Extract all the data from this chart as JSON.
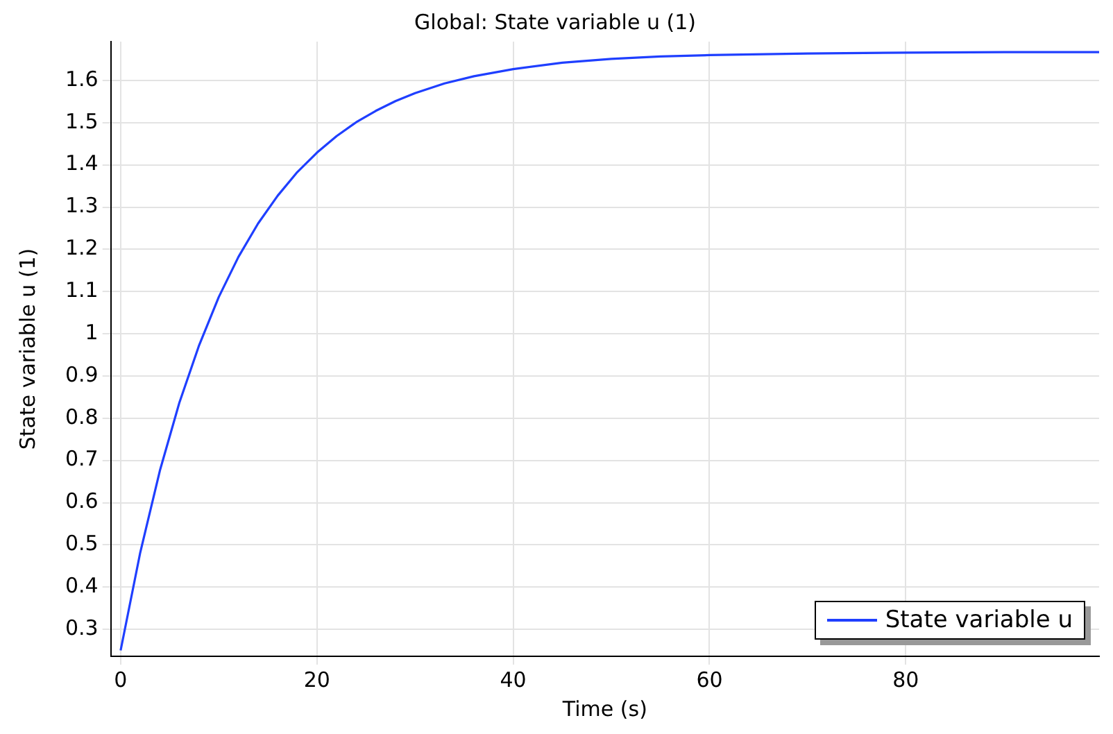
{
  "chart_data": {
    "type": "line",
    "title": "Global: State variable u (1)",
    "xlabel": "Time (s)",
    "ylabel": "State variable u (1)",
    "x": [
      0,
      2,
      4,
      6,
      8,
      10,
      12,
      14,
      16,
      18,
      20,
      22,
      24,
      26,
      28,
      30,
      33,
      36,
      40,
      45,
      50,
      55,
      60,
      70,
      80,
      90,
      99.7
    ],
    "series": [
      {
        "name": "State variable u",
        "color": "#1f3fff",
        "values": [
          0.25,
          0.482,
          0.676,
          0.838,
          0.973,
          1.087,
          1.182,
          1.261,
          1.327,
          1.383,
          1.429,
          1.468,
          1.501,
          1.528,
          1.551,
          1.57,
          1.593,
          1.61,
          1.627,
          1.642,
          1.651,
          1.657,
          1.66,
          1.664,
          1.666,
          1.667,
          1.667
        ]
      }
    ],
    "xlim": [
      -1,
      99.7
    ],
    "xticks": [
      0,
      20,
      40,
      60,
      80
    ],
    "ylim": [
      0.236,
      1.692
    ],
    "yticks": [
      0.3,
      0.4,
      0.5,
      0.6,
      0.7,
      0.8,
      0.9,
      1,
      1.1,
      1.2,
      1.3,
      1.4,
      1.5,
      1.6
    ],
    "grid": true,
    "legend": "bottom right",
    "marker": "none",
    "line_style": "solid"
  }
}
